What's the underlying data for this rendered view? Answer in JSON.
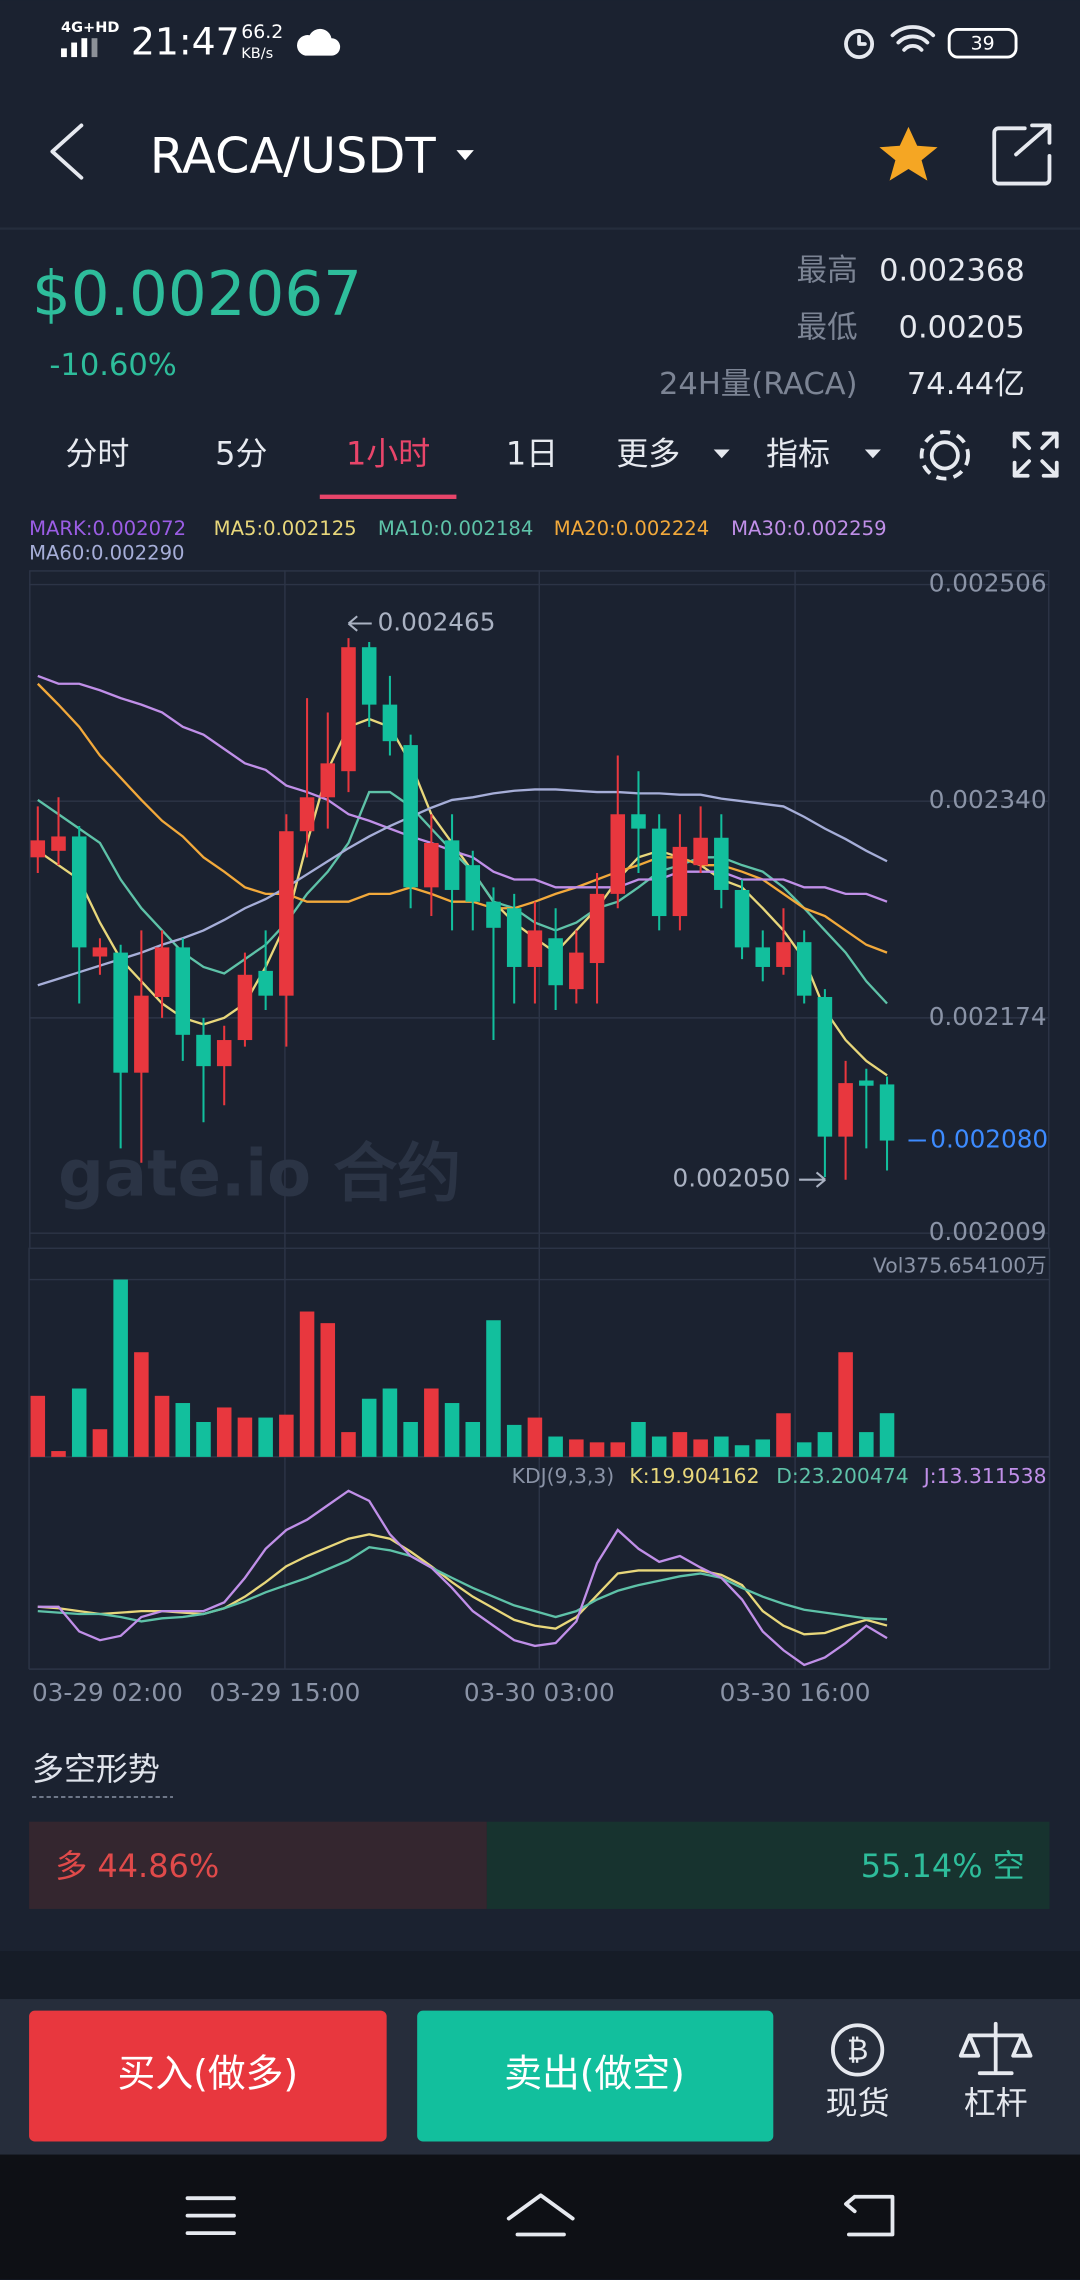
{
  "status_bar": {
    "network": "4G+HD",
    "time": "21:47",
    "speed": "66.2",
    "speed_unit": "KB/s",
    "battery": "39"
  },
  "header": {
    "pair": "RACA/USDT"
  },
  "ticker": {
    "price": "$0.002067",
    "change": "-10.60%",
    "stats": [
      {
        "label": "最高",
        "value": "0.002368"
      },
      {
        "label": "最低",
        "value": "0.00205"
      },
      {
        "label": "24H量(RACA)",
        "value": "74.44亿"
      }
    ]
  },
  "tabs": [
    "分时",
    "5分",
    "1小时",
    "1日",
    "更多",
    "指标"
  ],
  "active_tab": "1小时",
  "chart_data": [
    {
      "type": "candlestick",
      "up_color": "#e8373e",
      "down_color": "#12bf9d",
      "open": [
        0.002297,
        0.002302,
        0.002313,
        0.002221,
        0.002224,
        0.002132,
        0.00219,
        0.002228,
        0.002161,
        0.002137,
        0.002157,
        0.00221,
        0.002191,
        0.002317,
        0.002343,
        0.002363,
        0.002458,
        0.002414,
        0.002383,
        0.002274,
        0.00231,
        0.002291,
        0.002263,
        0.002258,
        0.002213,
        0.002235,
        0.002196,
        0.002216,
        0.002269,
        0.00233,
        0.002319,
        0.002252,
        0.002291,
        0.002312,
        0.002272,
        0.002228,
        0.002213,
        0.002232,
        0.00219,
        0.002083,
        0.002126,
        0.002123
      ],
      "high": [
        0.002336,
        0.002343,
        0.002321,
        0.002235,
        0.00223,
        0.002241,
        0.002241,
        0.002235,
        0.002174,
        0.002168,
        0.002224,
        0.002241,
        0.00233,
        0.002419,
        0.002408,
        0.002465,
        0.002462,
        0.002436,
        0.002391,
        0.00233,
        0.00233,
        0.002302,
        0.002274,
        0.002269,
        0.002263,
        0.002258,
        0.002241,
        0.002285,
        0.002375,
        0.002363,
        0.00233,
        0.00233,
        0.002336,
        0.00233,
        0.00228,
        0.002241,
        0.002258,
        0.002241,
        0.002196,
        0.002141,
        0.002135,
        0.002129
      ],
      "low": [
        0.002285,
        0.002291,
        0.002185,
        0.002207,
        0.002074,
        0.002063,
        0.002174,
        0.002141,
        0.002094,
        0.002107,
        0.002152,
        0.00218,
        0.002152,
        0.002297,
        0.002319,
        0.002347,
        0.002397,
        0.002375,
        0.002258,
        0.002252,
        0.002241,
        0.002241,
        0.002157,
        0.002185,
        0.002185,
        0.00218,
        0.002185,
        0.002185,
        0.002258,
        0.002285,
        0.002241,
        0.002241,
        0.002285,
        0.002258,
        0.002219,
        0.002202,
        0.002207,
        0.002185,
        0.002052,
        0.00205,
        0.002074,
        0.002057
      ],
      "close": [
        0.00231,
        0.002313,
        0.002228,
        0.002228,
        0.002132,
        0.002191,
        0.002228,
        0.002161,
        0.002137,
        0.002157,
        0.002207,
        0.002191,
        0.002317,
        0.002343,
        0.002369,
        0.002458,
        0.002414,
        0.002386,
        0.002274,
        0.002308,
        0.002272,
        0.002263,
        0.002243,
        0.002213,
        0.002241,
        0.002199,
        0.002224,
        0.002269,
        0.00233,
        0.002319,
        0.002252,
        0.002305,
        0.002312,
        0.002272,
        0.002228,
        0.002213,
        0.002232,
        0.002191,
        0.002083,
        0.002124,
        0.002122,
        0.00208
      ],
      "series": [
        {
          "name": "MARK:0.002072",
          "color": "#9b5de5"
        },
        {
          "name": "MA5:0.002125",
          "color": "#e8d77b",
          "values": [
            0.002302,
            0.002291,
            0.00228,
            0.002247,
            0.002219,
            0.002202,
            0.002185,
            0.002174,
            0.002169,
            0.002174,
            0.002185,
            0.002213,
            0.002247,
            0.002308,
            0.002364,
            0.002397,
            0.002403,
            0.002397,
            0.002369,
            0.00233,
            0.002308,
            0.002286,
            0.002263,
            0.002247,
            0.002235,
            0.002224,
            0.002241,
            0.002258,
            0.00228,
            0.002297,
            0.002302,
            0.002297,
            0.002291,
            0.00228,
            0.002274,
            0.002258,
            0.002241,
            0.002219,
            0.00218,
            0.002157,
            0.002141,
            0.00213
          ]
        },
        {
          "name": "MA10:0.002184",
          "color": "#5ec2a8",
          "values": [
            0.002341,
            0.00233,
            0.002319,
            0.002308,
            0.00228,
            0.002258,
            0.002241,
            0.002224,
            0.002213,
            0.002208,
            0.002219,
            0.00223,
            0.002247,
            0.002269,
            0.002286,
            0.002308,
            0.002347,
            0.002347,
            0.002336,
            0.002319,
            0.002302,
            0.002286,
            0.002263,
            0.002258,
            0.002247,
            0.002241,
            0.002247,
            0.002258,
            0.002263,
            0.002274,
            0.002286,
            0.002291,
            0.002297,
            0.002297,
            0.002291,
            0.002286,
            0.002274,
            0.002258,
            0.002241,
            0.002224,
            0.002202,
            0.002185
          ]
        },
        {
          "name": "MA20:0.002224",
          "color": "#f2a93b",
          "values": [
            0.00243,
            0.002414,
            0.002397,
            0.002375,
            0.002358,
            0.002341,
            0.002325,
            0.002313,
            0.002297,
            0.002286,
            0.002274,
            0.002269,
            0.002269,
            0.002263,
            0.002263,
            0.002263,
            0.002269,
            0.002269,
            0.002274,
            0.002269,
            0.002263,
            0.002263,
            0.002258,
            0.002258,
            0.002263,
            0.002269,
            0.002274,
            0.00228,
            0.002286,
            0.002291,
            0.002297,
            0.002297,
            0.002291,
            0.002291,
            0.002286,
            0.00228,
            0.002269,
            0.002258,
            0.002252,
            0.002241,
            0.00223,
            0.002224
          ]
        },
        {
          "name": "MA30:0.002259",
          "color": "#c08fe8",
          "values": [
            0.002436,
            0.00243,
            0.00243,
            0.002425,
            0.002419,
            0.002414,
            0.002408,
            0.002397,
            0.002391,
            0.00238,
            0.002369,
            0.002364,
            0.002352,
            0.002347,
            0.002341,
            0.00233,
            0.002325,
            0.002319,
            0.002313,
            0.002308,
            0.002302,
            0.002297,
            0.002286,
            0.00228,
            0.00228,
            0.002274,
            0.002274,
            0.002274,
            0.002274,
            0.00228,
            0.00228,
            0.002286,
            0.002286,
            0.002286,
            0.00228,
            0.00228,
            0.00228,
            0.002274,
            0.002274,
            0.002269,
            0.002269,
            0.002263
          ]
        },
        {
          "name": "MA60:0.002290",
          "color": "#a6aed8",
          "values": [
            0.002199,
            0.002204,
            0.002209,
            0.002214,
            0.002219,
            0.002224,
            0.00223,
            0.002235,
            0.002241,
            0.002249,
            0.002258,
            0.002265,
            0.002274,
            0.002284,
            0.002294,
            0.002304,
            0.002313,
            0.002321,
            0.002328,
            0.002335,
            0.002341,
            0.002343,
            0.002346,
            0.002348,
            0.002349,
            0.002349,
            0.002348,
            0.002347,
            0.002347,
            0.002346,
            0.002346,
            0.002345,
            0.002345,
            0.002342,
            0.00234,
            0.002338,
            0.002336,
            0.002328,
            0.002319,
            0.002311,
            0.002302,
            0.002294
          ]
        }
      ],
      "ylim": [
        0.001998,
        0.002517
      ],
      "yticks": [
        0.002506,
        {
          "value": 0.00234,
          "label": "0.002340"
        },
        0.002174,
        0.002009
      ],
      "last_price": {
        "value": 0.00208,
        "label": "0.002080"
      },
      "high_mark": 0.002465,
      "low_mark": {
        "value": 0.00205,
        "label": "0.002050"
      },
      "x_labels": [
        "03-29 02:00",
        "03-29 15:00",
        "03-30 03:00",
        "03-30 16:00"
      ],
      "watermark": "gate.io 合约"
    },
    {
      "type": "bar",
      "label": "Vol375.654100万",
      "values": [
        525,
        50,
        588,
        238,
        1525,
        900,
        525,
        463,
        300,
        425,
        338,
        338,
        363,
        1250,
        1150,
        213,
        500,
        588,
        300,
        588,
        463,
        300,
        1175,
        275,
        338,
        175,
        150,
        125,
        125,
        300,
        175,
        213,
        150,
        175,
        100,
        150,
        375,
        125,
        213,
        900,
        213,
        375.6541
      ],
      "ylim": [
        0,
        1525
      ]
    },
    {
      "type": "line",
      "label": "KDJ(9,3,3)",
      "series": [
        {
          "name": "K:19.904162",
          "color": "#e8d77b",
          "values": [
            29.8,
            29,
            27.5,
            26,
            26.7,
            27.5,
            27.5,
            26.7,
            26,
            29,
            35.1,
            42.7,
            51.1,
            56.5,
            61.1,
            65.6,
            67.9,
            65.6,
            58.8,
            51.1,
            42.7,
            35.1,
            29,
            22.9,
            19.8,
            18.3,
            24.4,
            35.9,
            47.3,
            48.9,
            48.9,
            48.9,
            48.9,
            46.6,
            41.2,
            27.5,
            19.8,
            15.3,
            16,
            19.8,
            22.9,
            19.904162
          ]
        },
        {
          "name": "D:23.200474",
          "color": "#5ec2a8",
          "values": [
            27.5,
            26.7,
            26,
            26,
            24.4,
            22.1,
            23.7,
            24.4,
            26,
            29,
            32.8,
            37.4,
            41.2,
            45,
            49.6,
            54.2,
            61.1,
            59.5,
            56.5,
            50.4,
            45,
            39.7,
            35.1,
            30.5,
            27.5,
            24.4,
            27.5,
            33.6,
            38.2,
            41.2,
            43.5,
            45.8,
            47.3,
            45,
            39.7,
            35.1,
            31.3,
            28.2,
            26.7,
            25.2,
            23.7,
            23.200474
          ]
        },
        {
          "name": "J:13.311538",
          "color": "#c08fe8",
          "values": [
            29.8,
            29.8,
            16.8,
            12.2,
            14.5,
            24.4,
            27.5,
            27.5,
            27.5,
            32.1,
            45,
            60.3,
            70.2,
            75.6,
            83.2,
            90.8,
            85.5,
            67.9,
            56.5,
            50.4,
            39.7,
            27.5,
            19.8,
            12.2,
            9.2,
            10.7,
            22.1,
            52.7,
            70.2,
            60.3,
            53.4,
            56.5,
            50.4,
            45,
            33.6,
            16.8,
            6.9,
            -0.8,
            3.1,
            10.7,
            19.8,
            13.311538
          ]
        }
      ],
      "ylim": [
        -3,
        101
      ]
    }
  ],
  "sentiment": {
    "title": "多空形势",
    "long": 44.86,
    "short": 55.14,
    "long_label": "多 44.86%",
    "short_label": "55.14% 空"
  },
  "buttons": {
    "buy": "买入(做多)",
    "sell": "卖出(做空)",
    "spot": "现货",
    "margin": "杠杆"
  }
}
